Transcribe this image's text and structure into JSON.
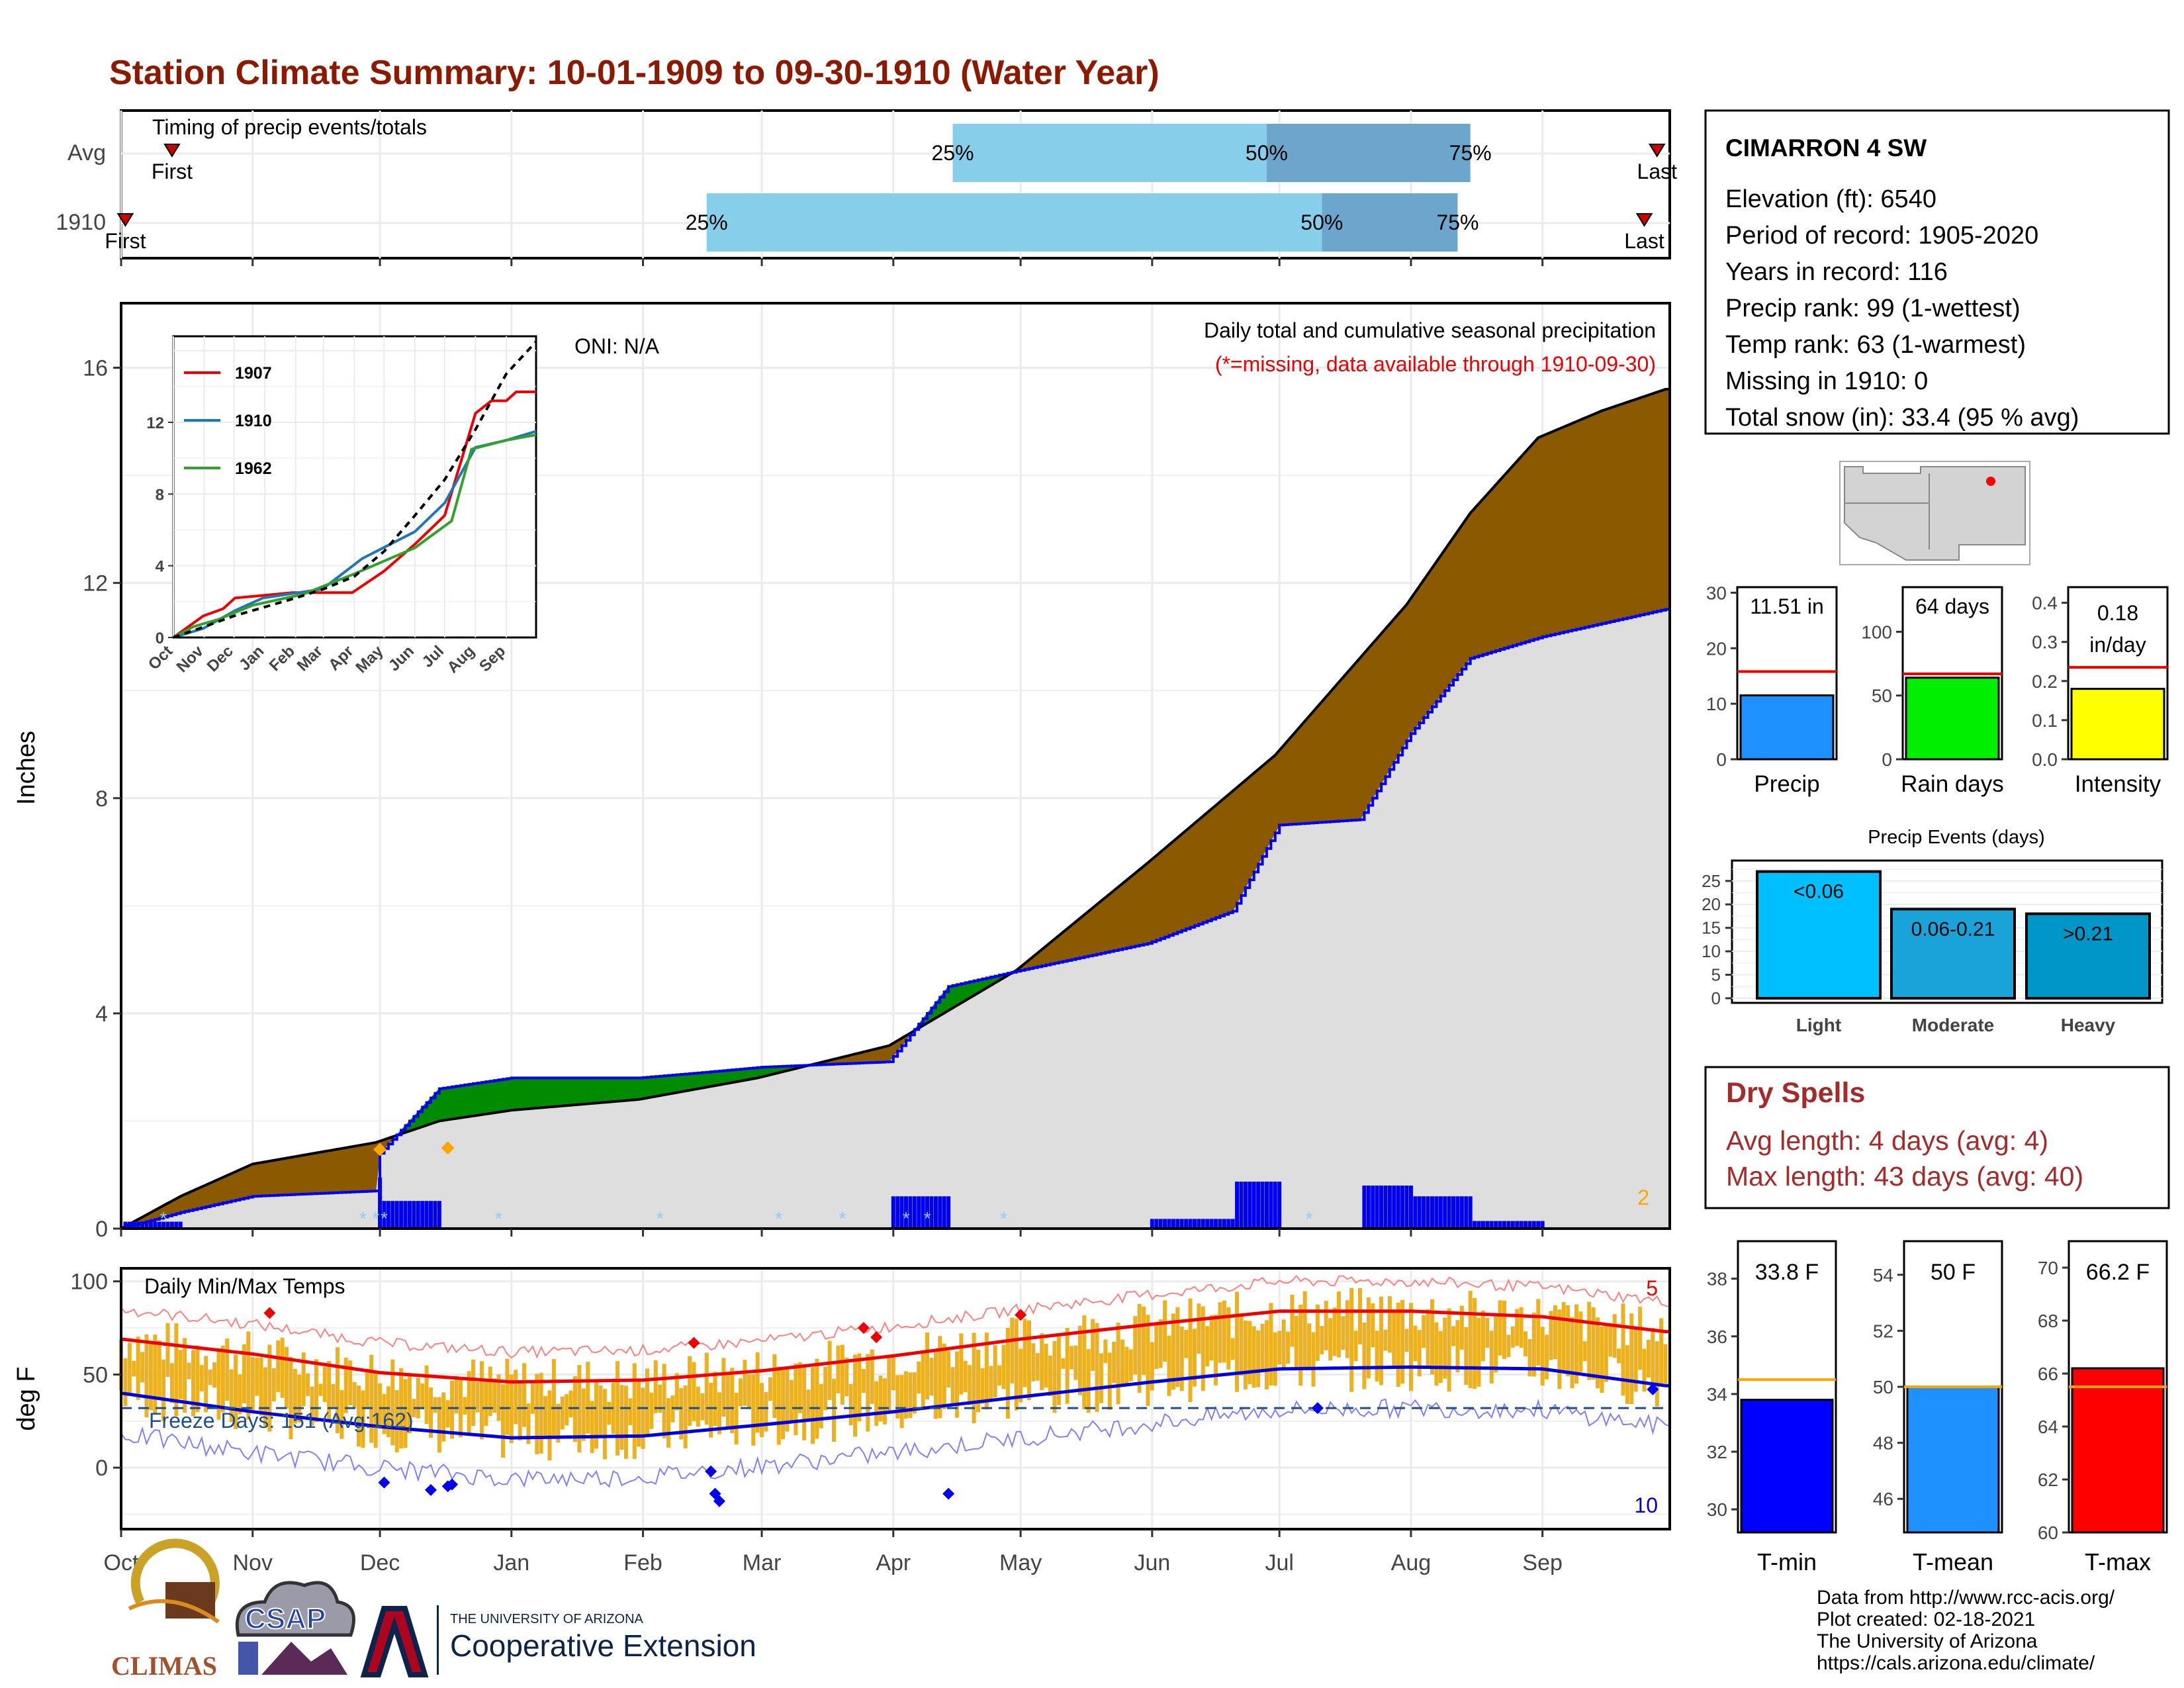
{
  "title": "Station Climate Summary: 10-01-1909 to 09-30-1910 (Water Year)",
  "timing": {
    "label": "Timing of precip events/totals",
    "rows": [
      {
        "name": "Avg",
        "first_label": "First",
        "last_label": "Last",
        "first_day": 12,
        "last_day": 362,
        "p25": 196,
        "p50": 270,
        "p75": 318
      },
      {
        "name": "1910",
        "first_label": "First",
        "last_label": "Last",
        "first_day": 1,
        "last_day": 359,
        "p25": 138,
        "p50": 283,
        "p75": 315
      }
    ],
    "p25_label": "25%",
    "p50_label": "50%",
    "p75_label": "75%"
  },
  "station": {
    "name": "CIMARRON 4 SW",
    "lines": [
      "Elevation (ft): 6540",
      "Period of record: 1905-2020",
      "Years in record: 116",
      "Precip rank: 99 (1-wettest)",
      "Temp rank: 63 (1-warmest)",
      "Missing in 1910: 0",
      "Total snow (in): 33.4 (95 % avg)"
    ]
  },
  "precip_panel": {
    "ylabel": "Inches",
    "oni": "ONI: N/A",
    "title": "Daily total and cumulative seasonal precipitation",
    "subtitle": "(*=missing, data available through 1910-09-30)",
    "corner_count": "2",
    "yticks": [
      "0",
      "4",
      "8",
      "12",
      "16"
    ],
    "xticks": [
      "Oct",
      "Nov",
      "Dec",
      "Jan",
      "Feb",
      "Mar",
      "Apr",
      "May",
      "Jun",
      "Jul",
      "Aug",
      "Sep"
    ]
  },
  "inset": {
    "legend": [
      "1907",
      "1910",
      "1962"
    ],
    "yticks": [
      "0",
      "4",
      "8",
      "12"
    ],
    "xticks": [
      "Oct",
      "Nov",
      "Dec",
      "Jan",
      "Feb",
      "Mar",
      "Apr",
      "May",
      "Jun",
      "Jul",
      "Aug",
      "Sep"
    ]
  },
  "temp_panel": {
    "title": "Daily Min/Max Temps",
    "ylabel": "deg F",
    "yticks": [
      "0",
      "50",
      "100"
    ],
    "freeze_label": "Freeze Days: 151 (Avg:162)",
    "max_count": "5",
    "min_count": "10"
  },
  "summary_bars": [
    {
      "name": "Precip",
      "value_label": "11.51 in",
      "yticks": [
        "0",
        "10",
        "20",
        "30"
      ],
      "ymax": 31,
      "value": 11.51,
      "avg": 15.8,
      "color": "#1E90FF"
    },
    {
      "name": "Rain days",
      "value_label": "64 days",
      "yticks": [
        "0",
        "50",
        "100"
      ],
      "ymax": 135,
      "value": 64,
      "avg": 67,
      "color": "#00EE00"
    },
    {
      "name": "Intensity",
      "value_label": "0.18 in/day",
      "yticks": [
        "0.0",
        "0.1",
        "0.2",
        "0.3",
        "0.4"
      ],
      "ymax": 0.44,
      "value": 0.18,
      "avg": 0.235,
      "color": "#FFFF00"
    }
  ],
  "precip_events": {
    "title": "Precip Events (days)",
    "yticks": [
      "0",
      "5",
      "10",
      "15",
      "20",
      "25"
    ],
    "bars": [
      {
        "name": "Light",
        "label": "<0.06",
        "value": 27,
        "color": "#00BFFF"
      },
      {
        "name": "Moderate",
        "label": "0.06-0.21",
        "value": 19,
        "color": "#1AA3D9"
      },
      {
        "name": "Heavy",
        "label": ">0.21",
        "value": 18,
        "color": "#0096C7"
      }
    ]
  },
  "dry_spells": {
    "title": "Dry Spells",
    "avg": "Avg length: 4 days (avg: 4)",
    "max": "Max length: 43 days (avg: 40)"
  },
  "temp_bars": [
    {
      "name": "T-min",
      "value_label": "33.8 F",
      "yticks": [
        "30",
        "32",
        "34",
        "36",
        "38"
      ],
      "ymin": 29.2,
      "ymax": 39.3,
      "value": 33.8,
      "avg": 34.5,
      "color": "#0000FF"
    },
    {
      "name": "T-mean",
      "value_label": "50 F",
      "yticks": [
        "46",
        "48",
        "50",
        "52",
        "54"
      ],
      "ymin": 44.8,
      "ymax": 55.2,
      "value": 50,
      "avg": 50,
      "color": "#1E90FF"
    },
    {
      "name": "T-max",
      "value_label": "66.2 F",
      "yticks": [
        "60",
        "62",
        "64",
        "66",
        "68",
        "70"
      ],
      "ymin": 60,
      "ymax": 71,
      "value": 66.2,
      "avg": 65.5,
      "color": "#FF0000"
    }
  ],
  "footer": {
    "lines": [
      "Data from http://www.rcc-acis.org/",
      "Plot created: 02-18-2021",
      "The University of Arizona",
      "https://cals.arizona.edu/climate/"
    ],
    "logo_climas": "CLIMAS",
    "logo_csap": "CSAP",
    "ua_small": "THE UNIVERSITY OF ARIZONA",
    "ua_big": "Cooperative Extension"
  },
  "chart_data": [
    {
      "type": "area",
      "title": "Daily total and cumulative seasonal precipitation",
      "ylabel": "Inches",
      "ylim": [
        0,
        17.2
      ],
      "x_range": [
        "1909-10-01",
        "1910-09-30"
      ],
      "series": [
        {
          "name": "1910",
          "x": [
            "1909-10-01",
            "1909-10-15",
            "1909-11-01",
            "1909-11-30",
            "1909-12-01",
            "1909-12-15",
            "1910-01-01",
            "1910-01-31",
            "1910-02-15",
            "1910-03-01",
            "1910-03-31",
            "1910-04-14",
            "1910-05-01",
            "1910-05-31",
            "1910-06-20",
            "1910-07-01",
            "1910-07-20",
            "1910-08-01",
            "1910-08-15",
            "1910-09-01",
            "1910-09-30"
          ],
          "values": [
            0,
            0.3,
            0.6,
            0.7,
            1.4,
            2.6,
            2.8,
            2.8,
            2.9,
            3.0,
            3.1,
            4.5,
            4.8,
            5.3,
            5.9,
            7.5,
            7.6,
            9.2,
            10.6,
            11.0,
            11.51
          ]
        },
        {
          "name": "average",
          "x": [
            "1909-10-01",
            "1909-10-15",
            "1909-11-01",
            "1909-11-30",
            "1909-12-15",
            "1910-01-01",
            "1910-01-31",
            "1910-02-28",
            "1910-03-31",
            "1910-04-30",
            "1910-05-31",
            "1910-06-30",
            "1910-07-31",
            "1910-08-15",
            "1910-08-31",
            "1910-09-15",
            "1910-09-30"
          ],
          "values": [
            0,
            0.6,
            1.2,
            1.6,
            2.0,
            2.2,
            2.4,
            2.8,
            3.4,
            4.8,
            6.8,
            8.8,
            11.6,
            13.3,
            14.7,
            15.2,
            15.6
          ]
        }
      ]
    },
    {
      "type": "line",
      "title": "Daily Min/Max Temps",
      "ylabel": "deg F",
      "ylim": [
        -33,
        107
      ],
      "x": [
        "1909-10-01",
        "1909-11-01",
        "1909-12-01",
        "1910-01-01",
        "1910-02-01",
        "1910-03-01",
        "1910-04-01",
        "1910-05-01",
        "1910-06-01",
        "1910-07-01",
        "1910-08-01",
        "1910-09-01",
        "1910-09-30"
      ],
      "series": [
        {
          "name": "avg max",
          "values": [
            69,
            61,
            51,
            46,
            47,
            52,
            60,
            69,
            77,
            84,
            84,
            81,
            73
          ]
        },
        {
          "name": "avg min",
          "values": [
            40,
            30,
            22,
            16,
            17,
            23,
            30,
            38,
            46,
            53,
            54,
            53,
            44
          ]
        },
        {
          "name": "freeze",
          "values": [
            32,
            32,
            32,
            32,
            32,
            32,
            32,
            32,
            32,
            32,
            32,
            32,
            32
          ]
        }
      ]
    }
  ]
}
